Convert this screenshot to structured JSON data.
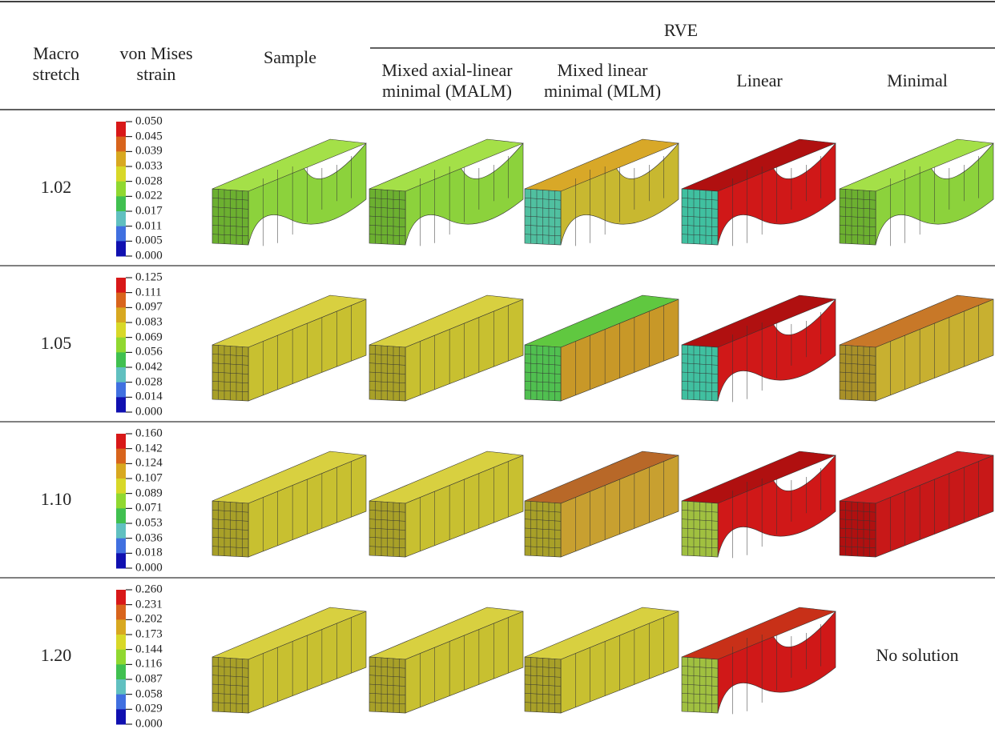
{
  "table": {
    "header": {
      "macro_stretch": [
        "Macro",
        "stretch"
      ],
      "von_mises": [
        "von Mises",
        "strain"
      ],
      "sample": "Sample",
      "rve": "RVE",
      "rve_columns": [
        [
          "Mixed axial-linear",
          "minimal (MALM)"
        ],
        [
          "Mixed linear",
          "minimal (MLM)"
        ],
        [
          "Linear"
        ],
        [
          "Minimal"
        ]
      ]
    },
    "rows": [
      {
        "stretch": "1.02",
        "legend": [
          "0.050",
          "0.045",
          "0.039",
          "0.033",
          "0.028",
          "0.022",
          "0.017",
          "0.011",
          "0.005",
          "0.000"
        ]
      },
      {
        "stretch": "1.05",
        "legend": [
          "0.125",
          "0.111",
          "0.097",
          "0.083",
          "0.069",
          "0.056",
          "0.042",
          "0.028",
          "0.014",
          "0.000"
        ]
      },
      {
        "stretch": "1.10",
        "legend": [
          "0.160",
          "0.142",
          "0.124",
          "0.107",
          "0.089",
          "0.071",
          "0.053",
          "0.036",
          "0.018",
          "0.000"
        ]
      },
      {
        "stretch": "1.20",
        "legend": [
          "0.260",
          "0.231",
          "0.202",
          "0.173",
          "0.144",
          "0.116",
          "0.087",
          "0.058",
          "0.029",
          "0.000"
        ],
        "minimal": "No solution"
      }
    ]
  }
}
